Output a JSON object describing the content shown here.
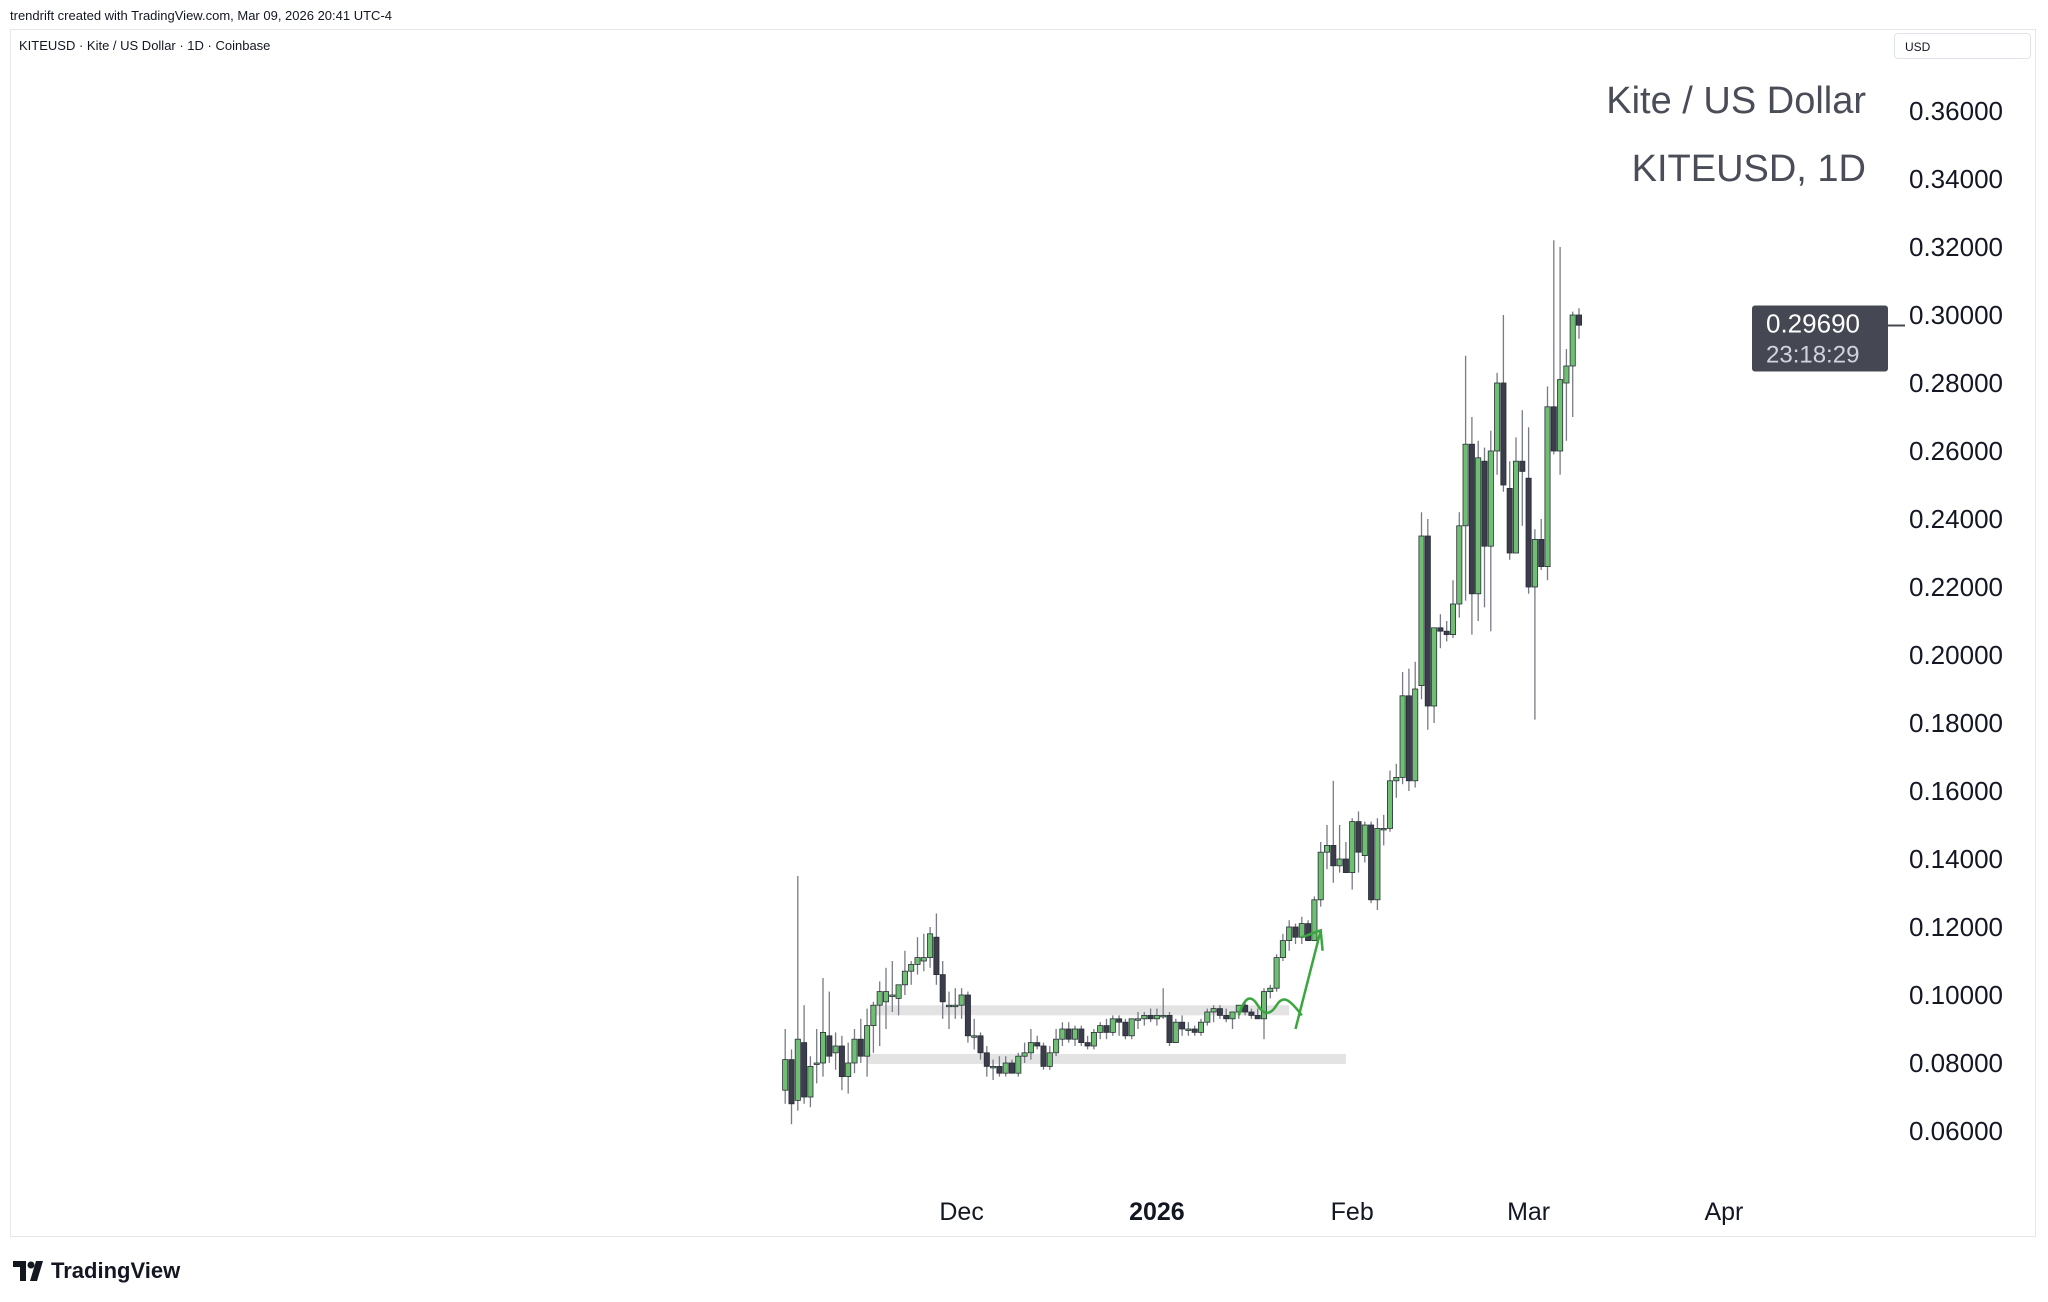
{
  "credit": "trendrift created with TradingView.com, Mar 09, 2026 20:41 UTC-4",
  "symbol_line": "KITEUSD · Kite / US Dollar · 1D · Coinbase",
  "currency_button": "USD",
  "watermark": {
    "line1": "Kite / US Dollar",
    "line2": "KITEUSD, 1D"
  },
  "logo_text": "TradingView",
  "last_price_label": {
    "price": "0.29690",
    "countdown": "23:18:29",
    "value": 0.2969
  },
  "colors": {
    "up": "#6fbf73",
    "down": "#3b3e4a",
    "wick": "#787b86",
    "drawing": "#3aa63f",
    "zone": "#e3e3e3",
    "label_bg": "#454852"
  },
  "chart_data": {
    "type": "candlestick",
    "title": "Kite / US Dollar",
    "interval": "1D",
    "start_date": "2025-11-03",
    "end_date": "2026-03-09",
    "ylim": [
      0.05,
      0.37
    ],
    "y_ticks": [
      "0.36000",
      "0.34000",
      "0.32000",
      "0.30000",
      "0.28000",
      "0.26000",
      "0.24000",
      "0.22000",
      "0.20000",
      "0.18000",
      "0.16000",
      "0.14000",
      "0.12000",
      "0.10000",
      "0.08000",
      "0.06000"
    ],
    "y_tick_values": [
      0.36,
      0.34,
      0.32,
      0.3,
      0.28,
      0.26,
      0.24,
      0.22,
      0.2,
      0.18,
      0.16,
      0.14,
      0.12,
      0.1,
      0.08,
      0.06
    ],
    "x_ticks": [
      {
        "label": "Dec",
        "index": 28,
        "bold": false
      },
      {
        "label": "2026",
        "index": 59,
        "bold": true
      },
      {
        "label": "Feb",
        "index": 90,
        "bold": false
      },
      {
        "label": "Mar",
        "index": 118,
        "bold": false
      },
      {
        "label": "Apr",
        "index": 149,
        "bold": false
      }
    ],
    "zones": [
      {
        "name": "upper-zone",
        "price": 0.0955,
        "from_index": 14,
        "to_index": 80
      },
      {
        "name": "lower-zone",
        "price": 0.0812,
        "from_index": 13,
        "to_index": 89
      }
    ],
    "candles_ohlc": [
      [
        0.072,
        0.09,
        0.068,
        0.081
      ],
      [
        0.081,
        0.084,
        0.062,
        0.068
      ],
      [
        0.069,
        0.135,
        0.066,
        0.087
      ],
      [
        0.086,
        0.097,
        0.068,
        0.07
      ],
      [
        0.07,
        0.082,
        0.067,
        0.079
      ],
      [
        0.08,
        0.09,
        0.074,
        0.08
      ],
      [
        0.08,
        0.105,
        0.076,
        0.089
      ],
      [
        0.088,
        0.101,
        0.08,
        0.082
      ],
      [
        0.083,
        0.089,
        0.078,
        0.085
      ],
      [
        0.085,
        0.088,
        0.072,
        0.076
      ],
      [
        0.076,
        0.086,
        0.071,
        0.08
      ],
      [
        0.08,
        0.09,
        0.077,
        0.087
      ],
      [
        0.087,
        0.093,
        0.08,
        0.082
      ],
      [
        0.082,
        0.096,
        0.076,
        0.091
      ],
      [
        0.091,
        0.098,
        0.083,
        0.097
      ],
      [
        0.097,
        0.104,
        0.085,
        0.101
      ],
      [
        0.098,
        0.108,
        0.09,
        0.101
      ],
      [
        0.1,
        0.11,
        0.095,
        0.1
      ],
      [
        0.099,
        0.103,
        0.094,
        0.103
      ],
      [
        0.103,
        0.113,
        0.1,
        0.107
      ],
      [
        0.107,
        0.11,
        0.103,
        0.109
      ],
      [
        0.109,
        0.117,
        0.106,
        0.111
      ],
      [
        0.11,
        0.118,
        0.107,
        0.111
      ],
      [
        0.111,
        0.12,
        0.108,
        0.118
      ],
      [
        0.117,
        0.124,
        0.103,
        0.106
      ],
      [
        0.106,
        0.11,
        0.093,
        0.098
      ],
      [
        0.097,
        0.101,
        0.09,
        0.097
      ],
      [
        0.097,
        0.102,
        0.093,
        0.097
      ],
      [
        0.097,
        0.102,
        0.093,
        0.1
      ],
      [
        0.1,
        0.101,
        0.086,
        0.088
      ],
      [
        0.088,
        0.093,
        0.084,
        0.088
      ],
      [
        0.088,
        0.089,
        0.081,
        0.083
      ],
      [
        0.083,
        0.085,
        0.076,
        0.079
      ],
      [
        0.079,
        0.081,
        0.075,
        0.079
      ],
      [
        0.079,
        0.082,
        0.076,
        0.077
      ],
      [
        0.077,
        0.082,
        0.076,
        0.08
      ],
      [
        0.08,
        0.081,
        0.077,
        0.077
      ],
      [
        0.077,
        0.083,
        0.076,
        0.082
      ],
      [
        0.082,
        0.086,
        0.08,
        0.083
      ],
      [
        0.083,
        0.09,
        0.081,
        0.086
      ],
      [
        0.086,
        0.088,
        0.084,
        0.085
      ],
      [
        0.085,
        0.086,
        0.078,
        0.079
      ],
      [
        0.079,
        0.085,
        0.078,
        0.083
      ],
      [
        0.083,
        0.09,
        0.082,
        0.087
      ],
      [
        0.087,
        0.092,
        0.085,
        0.09
      ],
      [
        0.09,
        0.092,
        0.086,
        0.087
      ],
      [
        0.087,
        0.091,
        0.085,
        0.09
      ],
      [
        0.09,
        0.091,
        0.085,
        0.086
      ],
      [
        0.086,
        0.088,
        0.084,
        0.085
      ],
      [
        0.085,
        0.09,
        0.084,
        0.089
      ],
      [
        0.089,
        0.092,
        0.087,
        0.091
      ],
      [
        0.091,
        0.093,
        0.087,
        0.089
      ],
      [
        0.089,
        0.094,
        0.088,
        0.093
      ],
      [
        0.093,
        0.094,
        0.088,
        0.092
      ],
      [
        0.092,
        0.093,
        0.087,
        0.088
      ],
      [
        0.088,
        0.093,
        0.087,
        0.093
      ],
      [
        0.093,
        0.095,
        0.09,
        0.093
      ],
      [
        0.093,
        0.095,
        0.091,
        0.094
      ],
      [
        0.094,
        0.096,
        0.092,
        0.093
      ],
      [
        0.093,
        0.096,
        0.091,
        0.094
      ],
      [
        0.094,
        0.102,
        0.093,
        0.094
      ],
      [
        0.094,
        0.095,
        0.085,
        0.086
      ],
      [
        0.086,
        0.093,
        0.086,
        0.092
      ],
      [
        0.092,
        0.094,
        0.088,
        0.09
      ],
      [
        0.09,
        0.092,
        0.088,
        0.09
      ],
      [
        0.09,
        0.091,
        0.088,
        0.089
      ],
      [
        0.089,
        0.093,
        0.088,
        0.092
      ],
      [
        0.092,
        0.096,
        0.091,
        0.095
      ],
      [
        0.095,
        0.097,
        0.092,
        0.096
      ],
      [
        0.096,
        0.097,
        0.093,
        0.094
      ],
      [
        0.094,
        0.096,
        0.092,
        0.093
      ],
      [
        0.093,
        0.095,
        0.09,
        0.095
      ],
      [
        0.095,
        0.097,
        0.093,
        0.097
      ],
      [
        0.097,
        0.098,
        0.094,
        0.095
      ],
      [
        0.095,
        0.096,
        0.093,
        0.094
      ],
      [
        0.094,
        0.096,
        0.093,
        0.093
      ],
      [
        0.093,
        0.102,
        0.087,
        0.101
      ],
      [
        0.101,
        0.103,
        0.099,
        0.102
      ],
      [
        0.102,
        0.112,
        0.101,
        0.111
      ],
      [
        0.111,
        0.118,
        0.11,
        0.116
      ],
      [
        0.116,
        0.122,
        0.113,
        0.12
      ],
      [
        0.12,
        0.121,
        0.115,
        0.117
      ],
      [
        0.117,
        0.123,
        0.115,
        0.121
      ],
      [
        0.121,
        0.122,
        0.116,
        0.116
      ],
      [
        0.116,
        0.129,
        0.116,
        0.128
      ],
      [
        0.128,
        0.145,
        0.126,
        0.142
      ],
      [
        0.142,
        0.15,
        0.137,
        0.144
      ],
      [
        0.144,
        0.163,
        0.133,
        0.138
      ],
      [
        0.138,
        0.15,
        0.136,
        0.14
      ],
      [
        0.14,
        0.145,
        0.136,
        0.136
      ],
      [
        0.136,
        0.152,
        0.131,
        0.151
      ],
      [
        0.151,
        0.154,
        0.136,
        0.142
      ],
      [
        0.141,
        0.151,
        0.139,
        0.15
      ],
      [
        0.15,
        0.151,
        0.127,
        0.128
      ],
      [
        0.128,
        0.152,
        0.125,
        0.149
      ],
      [
        0.149,
        0.153,
        0.144,
        0.149
      ],
      [
        0.149,
        0.166,
        0.148,
        0.163
      ],
      [
        0.163,
        0.168,
        0.158,
        0.164
      ],
      [
        0.164,
        0.195,
        0.162,
        0.188
      ],
      [
        0.188,
        0.196,
        0.16,
        0.163
      ],
      [
        0.163,
        0.198,
        0.161,
        0.19
      ],
      [
        0.191,
        0.242,
        0.187,
        0.235
      ],
      [
        0.235,
        0.24,
        0.178,
        0.185
      ],
      [
        0.185,
        0.208,
        0.18,
        0.208
      ],
      [
        0.208,
        0.212,
        0.202,
        0.207
      ],
      [
        0.207,
        0.21,
        0.204,
        0.206
      ],
      [
        0.206,
        0.222,
        0.205,
        0.215
      ],
      [
        0.215,
        0.242,
        0.211,
        0.238
      ],
      [
        0.238,
        0.288,
        0.216,
        0.262
      ],
      [
        0.262,
        0.27,
        0.206,
        0.218
      ],
      [
        0.218,
        0.263,
        0.21,
        0.258
      ],
      [
        0.257,
        0.261,
        0.214,
        0.232
      ],
      [
        0.232,
        0.266,
        0.207,
        0.26
      ],
      [
        0.26,
        0.283,
        0.253,
        0.28
      ],
      [
        0.28,
        0.3,
        0.248,
        0.25
      ],
      [
        0.249,
        0.257,
        0.228,
        0.23
      ],
      [
        0.23,
        0.264,
        0.231,
        0.257
      ],
      [
        0.257,
        0.272,
        0.238,
        0.254
      ],
      [
        0.252,
        0.267,
        0.218,
        0.22
      ],
      [
        0.22,
        0.237,
        0.181,
        0.234
      ],
      [
        0.234,
        0.24,
        0.225,
        0.226
      ],
      [
        0.226,
        0.279,
        0.222,
        0.273
      ],
      [
        0.273,
        0.322,
        0.259,
        0.26
      ],
      [
        0.26,
        0.32,
        0.253,
        0.281
      ],
      [
        0.28,
        0.29,
        0.263,
        0.285
      ],
      [
        0.285,
        0.301,
        0.27,
        0.3
      ],
      [
        0.3,
        0.302,
        0.293,
        0.297
      ]
    ]
  }
}
